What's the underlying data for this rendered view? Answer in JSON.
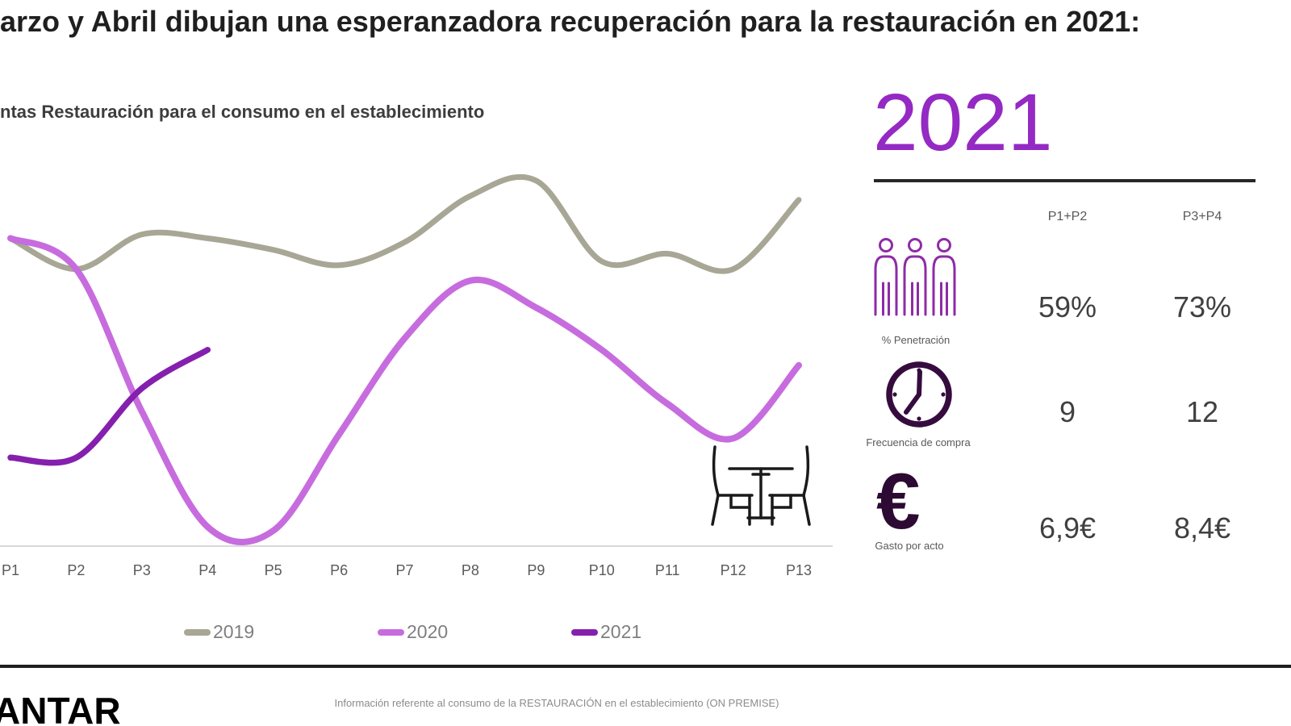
{
  "title": "arzo y Abril dibujan una esperanzadora recuperación para la restauración en 2021:",
  "chart_data": {
    "type": "line",
    "title": "ntas Restauración para el consumo en el establecimiento",
    "categories": [
      "P1",
      "P2",
      "P3",
      "P4",
      "P5",
      "P6",
      "P7",
      "P8",
      "P9",
      "P10",
      "P11",
      "P12",
      "P13"
    ],
    "series": [
      {
        "name": "2019",
        "color": "#a8a695",
        "width": 7,
        "values": [
          80,
          72,
          81,
          80,
          77,
          73,
          79,
          91,
          95,
          74,
          76,
          72,
          90
        ]
      },
      {
        "name": "2020",
        "color": "#c76cde",
        "width": 8,
        "values": [
          80,
          72,
          35,
          5,
          4,
          29,
          54,
          69,
          62,
          51,
          37,
          28,
          47
        ]
      },
      {
        "name": "2021",
        "color": "#8520ae",
        "width": 7.5,
        "values": [
          23,
          23,
          41,
          51
        ]
      }
    ],
    "ylim": [
      0,
      100
    ],
    "y_axis_visible": false,
    "grid": false,
    "legend_position": "bottom",
    "axis_color": "#d8d8d8",
    "tick_color": "#5a5a5a"
  },
  "panel": {
    "year": "2021",
    "columns": [
      "P1+P2",
      "P3+P4"
    ],
    "rows": [
      {
        "icon": "people-icon",
        "label": "% Penetración",
        "values": [
          "59%",
          "73%"
        ]
      },
      {
        "icon": "clock-icon",
        "label": "Frecuencia de compra",
        "values": [
          "9",
          "12"
        ]
      },
      {
        "icon": "euro-icon",
        "label": "Gasto por acto",
        "values": [
          "6,9€",
          "8,4€"
        ],
        "glyph": "€"
      }
    ],
    "accent_color": "#9429c4"
  },
  "footer": {
    "logo": "ANTAR",
    "note": "Información referente al consumo de la RESTAURACIÓN en el establecimiento (ON PREMISE)"
  }
}
